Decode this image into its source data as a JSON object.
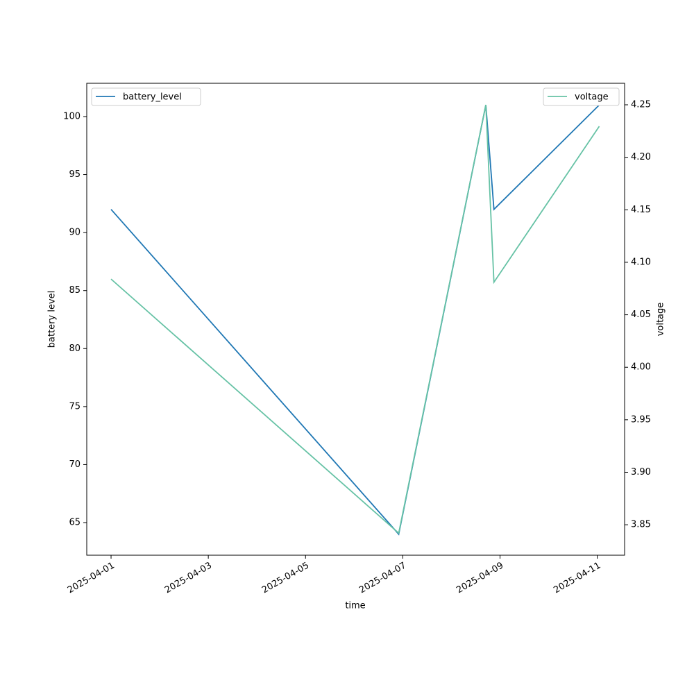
{
  "chart_data": {
    "type": "line",
    "x_label": "time",
    "y_label": "battery level",
    "y2_label": "voltage",
    "x": [
      "2025-04-01T00:00",
      "2025-04-06T22:00",
      "2025-04-08T17:00",
      "2025-04-08T21:00",
      "2025-04-11T01:00"
    ],
    "series": [
      {
        "name": "battery_level",
        "color": "#1f77b4",
        "values": [
          92,
          64,
          101,
          92,
          101
        ]
      },
      {
        "name": "voltage",
        "color": "#66c2a5",
        "axis": "y2",
        "values": [
          4.084,
          3.842,
          4.25,
          4.081,
          4.2295
        ]
      }
    ],
    "xlim": [
      "2025-03-31T12:00",
      "2025-04-11T13:30"
    ],
    "xticks": [
      "2025-04-01",
      "2025-04-03",
      "2025-04-05",
      "2025-04-07",
      "2025-04-09",
      "2025-04-11"
    ],
    "ylim": [
      62.19,
      102.87
    ],
    "yticks": [
      65,
      70,
      75,
      80,
      85,
      90,
      95,
      100
    ],
    "y2lim": [
      3.821,
      4.2705
    ],
    "y2ticks": [
      3.85,
      {
        "value": 3.9,
        "label": "3.90"
      },
      3.95,
      {
        "value": 4.0,
        "label": "4.00"
      },
      4.05,
      {
        "value": 4.1,
        "label": "4.10"
      },
      4.15,
      {
        "value": 4.2,
        "label": "4.20"
      },
      4.25
    ],
    "legend": [
      "upper left",
      "upper right"
    ]
  }
}
